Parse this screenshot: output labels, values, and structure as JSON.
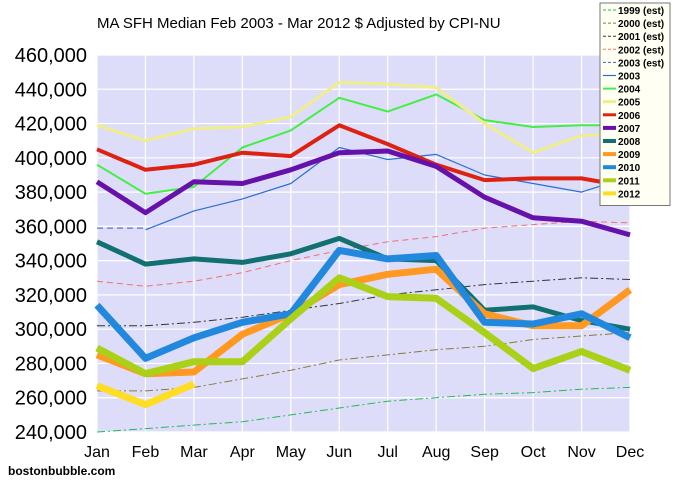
{
  "credit": "bostonbubble.com",
  "chart_data": {
    "type": "line",
    "title": "MA SFH Median Feb 2003 - Mar 2012 $ Adjusted by CPI-NU",
    "xlabel": "",
    "ylabel": "",
    "categories": [
      "Jan",
      "Feb",
      "Mar",
      "Apr",
      "May",
      "Jun",
      "Jul",
      "Aug",
      "Sep",
      "Oct",
      "Nov",
      "Dec"
    ],
    "ylim": [
      240000,
      460000
    ],
    "yticks": [
      "240,000",
      "260,000",
      "280,000",
      "300,000",
      "320,000",
      "340,000",
      "360,000",
      "380,000",
      "400,000",
      "420,000",
      "440,000",
      "460,000"
    ],
    "ytick_values": [
      240000,
      260000,
      280000,
      300000,
      320000,
      340000,
      360000,
      380000,
      400000,
      420000,
      440000,
      460000
    ],
    "grid": true,
    "plot_background": "#ddddfa",
    "legend_placement": "top-right",
    "series": [
      {
        "name": "1999 (est)",
        "color": "#22bb55",
        "width": 1,
        "dash": "8,3,2,3",
        "values": [
          240000,
          242000,
          244000,
          246000,
          250000,
          254000,
          258000,
          260000,
          262000,
          263000,
          265000,
          266000
        ]
      },
      {
        "name": "2000 (est)",
        "color": "#8a7a3a",
        "width": 1,
        "dash": "8,3,2,3",
        "values": [
          264000,
          264000,
          266000,
          271000,
          276000,
          282000,
          285000,
          288000,
          290000,
          294000,
          296000,
          298000
        ]
      },
      {
        "name": "2001 (est)",
        "color": "#333333",
        "width": 1,
        "dash": "8,3,2,3",
        "values": [
          302000,
          302000,
          304000,
          307000,
          311000,
          315000,
          320000,
          323000,
          326000,
          328000,
          330000,
          329000
        ]
      },
      {
        "name": "2002 (est)",
        "color": "#f07070",
        "width": 1,
        "dash": "6,4",
        "values": [
          328000,
          325000,
          328000,
          333000,
          340000,
          346000,
          351000,
          354000,
          359000,
          361000,
          363000,
          362000
        ]
      },
      {
        "name": "2003 (est)",
        "color": "#4466aa",
        "width": 1,
        "dash": "6,4",
        "values": [
          359000,
          359000,
          null,
          null,
          null,
          null,
          null,
          null,
          null,
          null,
          null,
          null
        ]
      },
      {
        "name": "2003",
        "color": "#2a6fd0",
        "width": 1.2,
        "dash": "",
        "values": [
          null,
          358000,
          369000,
          376000,
          385000,
          406000,
          399000,
          402000,
          390000,
          385000,
          380000,
          389000
        ]
      },
      {
        "name": "2004",
        "color": "#44ee44",
        "width": 2,
        "dash": "",
        "values": [
          396000,
          379000,
          383000,
          406000,
          416000,
          435000,
          427000,
          437000,
          422000,
          418000,
          419000,
          419000
        ]
      },
      {
        "name": "2005",
        "color": "#f0ee88",
        "width": 3,
        "dash": "",
        "values": [
          419000,
          410000,
          417000,
          418000,
          424000,
          444000,
          443000,
          441000,
          420000,
          403000,
          413000,
          414000
        ]
      },
      {
        "name": "2006",
        "color": "#dd2211",
        "width": 4,
        "dash": "",
        "values": [
          405000,
          393000,
          396000,
          403000,
          401000,
          419000,
          408000,
          396000,
          387000,
          388000,
          388000,
          383000
        ]
      },
      {
        "name": "2007",
        "color": "#6611aa",
        "width": 5,
        "dash": "",
        "values": [
          386000,
          368000,
          386000,
          385000,
          393000,
          403000,
          404000,
          395000,
          377000,
          365000,
          363000,
          355000
        ]
      },
      {
        "name": "2008",
        "color": "#127070",
        "width": 5,
        "dash": "",
        "values": [
          351000,
          338000,
          341000,
          339000,
          344000,
          353000,
          341000,
          340000,
          311000,
          313000,
          305000,
          300000
        ]
      },
      {
        "name": "2009",
        "color": "#ff9922",
        "width": 7,
        "dash": "",
        "values": [
          285000,
          274000,
          275000,
          297000,
          309000,
          326000,
          332000,
          335000,
          309000,
          302000,
          302000,
          323000
        ]
      },
      {
        "name": "2010",
        "color": "#2288dd",
        "width": 7,
        "dash": "",
        "values": [
          314000,
          283000,
          295000,
          304000,
          309000,
          346000,
          341000,
          343000,
          304000,
          303000,
          309000,
          295000
        ]
      },
      {
        "name": "2011",
        "color": "#aad018",
        "width": 7,
        "dash": "",
        "values": [
          289000,
          274000,
          281000,
          281000,
          306000,
          330000,
          319000,
          318000,
          298000,
          277000,
          287000,
          276000
        ]
      },
      {
        "name": "2012",
        "color": "#ffdd22",
        "width": 7,
        "dash": "",
        "values": [
          267000,
          256000,
          268000,
          null,
          null,
          null,
          null,
          null,
          null,
          null,
          null,
          null
        ]
      }
    ],
    "legend_order": [
      "1999 (est)",
      "2000 (est)",
      "2001 (est)",
      "2002 (est)",
      "2003 (est)",
      "2003",
      "2004",
      "2005",
      "2006",
      "2007",
      "2008",
      "2009",
      "2010",
      "2011",
      "2012"
    ],
    "legend_background": "#fffff4",
    "legend_border": "#777777"
  }
}
